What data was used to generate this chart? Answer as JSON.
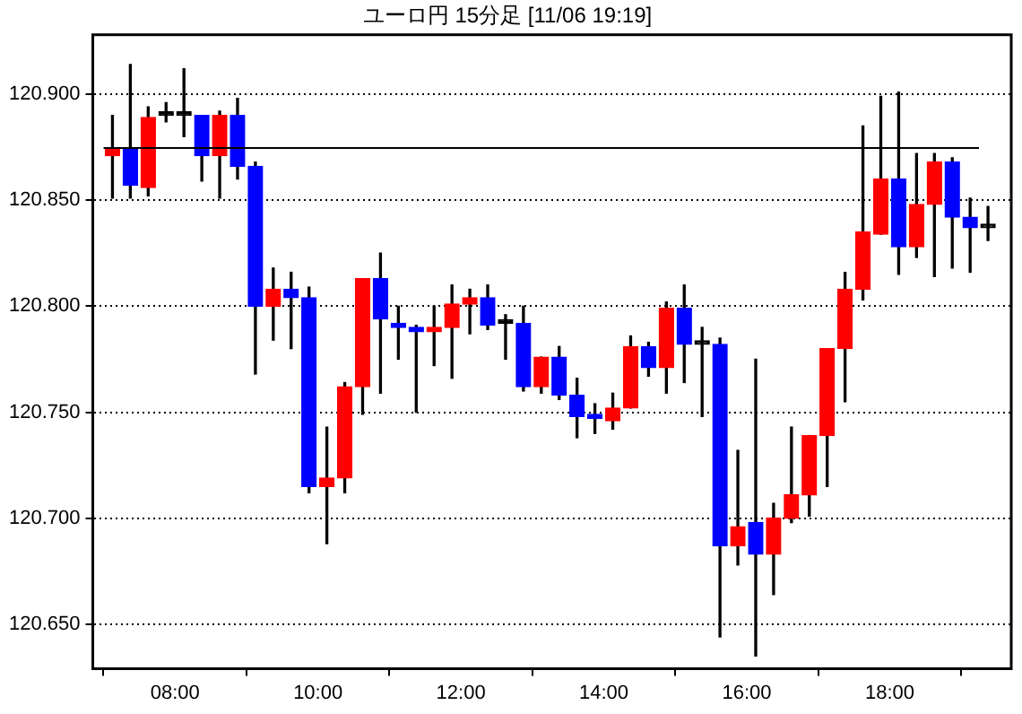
{
  "chart_data": {
    "type": "candlestick",
    "title": "ユーロ円 15分足 [11/06 19:19]",
    "x": [
      7.125,
      7.375,
      7.625,
      7.875,
      8.125,
      8.375,
      8.625,
      8.875,
      9.125,
      9.375,
      9.625,
      9.875,
      10.125,
      10.375,
      10.625,
      10.875,
      11.125,
      11.375,
      11.625,
      11.875,
      12.125,
      12.375,
      12.625,
      12.875,
      13.125,
      13.375,
      13.625,
      13.875,
      14.125,
      14.375,
      14.625,
      14.875,
      15.125,
      15.375,
      15.625,
      15.875,
      16.125,
      16.375,
      16.625,
      16.875,
      17.125,
      17.375,
      17.625,
      17.875,
      18.125,
      18.375,
      18.625,
      18.875,
      19.125,
      19.375
    ],
    "ohlc": [
      [
        120.871,
        120.89,
        120.851,
        120.874
      ],
      [
        120.874,
        120.914,
        120.851,
        120.857
      ],
      [
        120.856,
        120.894,
        120.852,
        120.889
      ],
      [
        120.89,
        120.896,
        120.887,
        120.89
      ],
      [
        120.89,
        120.912,
        120.88,
        120.89
      ],
      [
        120.89,
        120.89,
        120.859,
        120.871
      ],
      [
        120.871,
        120.892,
        120.851,
        120.89
      ],
      [
        120.89,
        120.898,
        120.86,
        120.866
      ],
      [
        120.866,
        120.868,
        120.768,
        120.8
      ],
      [
        120.8,
        120.818,
        120.784,
        120.808
      ],
      [
        120.808,
        120.816,
        120.78,
        120.804
      ],
      [
        120.804,
        120.809,
        120.712,
        120.715
      ],
      [
        120.715,
        120.743,
        120.688,
        120.719
      ],
      [
        120.719,
        120.764,
        120.712,
        120.762
      ],
      [
        120.762,
        120.813,
        120.749,
        120.813
      ],
      [
        120.813,
        120.825,
        120.759,
        120.794
      ],
      [
        120.792,
        120.8,
        120.775,
        120.79
      ],
      [
        120.79,
        120.791,
        120.75,
        120.788
      ],
      [
        120.788,
        120.8,
        120.772,
        120.79
      ],
      [
        120.79,
        120.81,
        120.766,
        120.801
      ],
      [
        120.801,
        120.808,
        120.787,
        120.804
      ],
      [
        120.804,
        120.81,
        120.789,
        120.791
      ],
      [
        120.792,
        120.796,
        120.775,
        120.792
      ],
      [
        120.792,
        120.8,
        120.76,
        120.762
      ],
      [
        120.762,
        120.776,
        120.759,
        120.776
      ],
      [
        120.776,
        120.781,
        120.756,
        120.758
      ],
      [
        120.758,
        120.766,
        120.738,
        120.748
      ],
      [
        120.749,
        120.754,
        120.74,
        120.747
      ],
      [
        120.746,
        120.759,
        120.742,
        120.752
      ],
      [
        120.752,
        120.786,
        120.752,
        120.781
      ],
      [
        120.781,
        120.783,
        120.767,
        120.771
      ],
      [
        120.771,
        120.802,
        120.759,
        120.799
      ],
      [
        120.799,
        120.81,
        120.764,
        120.782
      ],
      [
        120.782,
        120.79,
        120.748,
        120.782
      ],
      [
        120.782,
        120.785,
        120.644,
        120.687
      ],
      [
        120.687,
        120.732,
        120.678,
        120.696
      ],
      [
        120.698,
        120.775,
        120.635,
        120.683
      ],
      [
        120.683,
        120.707,
        120.664,
        120.7
      ],
      [
        120.7,
        120.743,
        120.698,
        120.711
      ],
      [
        120.711,
        120.739,
        120.701,
        120.739
      ],
      [
        120.739,
        120.78,
        120.715,
        120.78
      ],
      [
        120.78,
        120.816,
        120.755,
        120.808
      ],
      [
        120.808,
        120.885,
        120.803,
        120.835
      ],
      [
        120.834,
        120.899,
        120.834,
        120.86
      ],
      [
        120.86,
        120.901,
        120.815,
        120.828
      ],
      [
        120.828,
        120.872,
        120.823,
        120.848
      ],
      [
        120.848,
        120.872,
        120.814,
        120.868
      ],
      [
        120.868,
        120.87,
        120.818,
        120.842
      ],
      [
        120.842,
        120.851,
        120.816,
        120.837
      ],
      [
        120.837,
        120.847,
        120.831,
        120.837
      ]
    ],
    "colors": [
      "#ff0000",
      "#0000ff",
      "#ff0000",
      "#000000",
      "#000000",
      "#0000ff",
      "#ff0000",
      "#0000ff",
      "#0000ff",
      "#ff0000",
      "#0000ff",
      "#0000ff",
      "#ff0000",
      "#ff0000",
      "#ff0000",
      "#0000ff",
      "#0000ff",
      "#0000ff",
      "#ff0000",
      "#ff0000",
      "#ff0000",
      "#0000ff",
      "#000000",
      "#0000ff",
      "#ff0000",
      "#0000ff",
      "#0000ff",
      "#0000ff",
      "#ff0000",
      "#ff0000",
      "#0000ff",
      "#ff0000",
      "#0000ff",
      "#000000",
      "#0000ff",
      "#ff0000",
      "#0000ff",
      "#ff0000",
      "#ff0000",
      "#ff0000",
      "#ff0000",
      "#ff0000",
      "#ff0000",
      "#ff0000",
      "#0000ff",
      "#ff0000",
      "#ff0000",
      "#0000ff",
      "#0000ff",
      "#000000"
    ],
    "xlim": [
      6.85,
      19.7
    ],
    "xticks": [
      {
        "value": 8,
        "label": "08:00"
      },
      {
        "value": 10,
        "label": "10:00"
      },
      {
        "value": 12,
        "label": "12:00"
      },
      {
        "value": 14,
        "label": "14:00"
      },
      {
        "value": 16,
        "label": "16:00"
      },
      {
        "value": 18,
        "label": "18:00"
      }
    ],
    "ylim": [
      120.629,
      120.928
    ],
    "yticks": [
      {
        "value": 120.65,
        "label": "120.650"
      },
      {
        "value": 120.7,
        "label": "120.700"
      },
      {
        "value": 120.75,
        "label": "120.750"
      },
      {
        "value": 120.8,
        "label": "120.800"
      },
      {
        "value": 120.85,
        "label": "120.850"
      },
      {
        "value": 120.9,
        "label": "120.900"
      }
    ],
    "grid": "y",
    "ref_lines": [
      {
        "axis": "y",
        "value": 120.875,
        "label": null,
        "color": "#000000"
      }
    ]
  }
}
